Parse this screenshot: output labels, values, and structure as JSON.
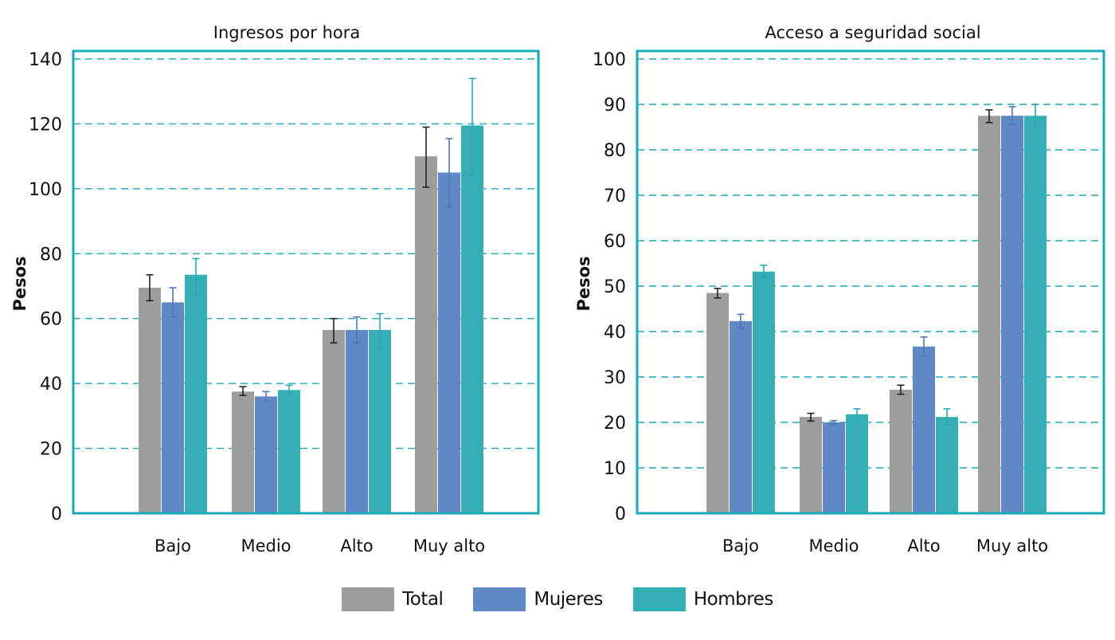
{
  "chart_data": [
    {
      "type": "bar",
      "title": "Ingresos por hora",
      "ylabel": "Pesos",
      "xlabel": "",
      "ylim": [
        0,
        140
      ],
      "yticks": [
        0,
        20,
        40,
        60,
        80,
        100,
        120,
        140
      ],
      "categories": [
        "Bajo",
        "Medio",
        "Alto",
        "Muy alto"
      ],
      "grid": "horizontal-dashed",
      "error_bars": true,
      "series": [
        {
          "name": "Total",
          "values": [
            69.5,
            37.5,
            56.5,
            110
          ],
          "err_low": [
            65.5,
            36.3,
            52.5,
            100.5
          ],
          "err_high": [
            73.5,
            39,
            60,
            119
          ]
        },
        {
          "name": "Mujeres",
          "values": [
            65,
            36,
            56.5,
            105
          ],
          "err_low": [
            60.5,
            34.5,
            52.5,
            94.5
          ],
          "err_high": [
            69.5,
            37.5,
            60.5,
            115.5
          ]
        },
        {
          "name": "Hombres",
          "values": [
            73.5,
            38,
            56.5,
            119.5
          ],
          "err_low": [
            67.5,
            36.5,
            50.5,
            104
          ],
          "err_high": [
            78.5,
            39.5,
            61.5,
            134
          ]
        }
      ]
    },
    {
      "type": "bar",
      "title": "Acceso a seguridad social",
      "ylabel": "Pesos",
      "xlabel": "",
      "ylim": [
        0,
        100
      ],
      "yticks": [
        0,
        10,
        20,
        30,
        40,
        50,
        60,
        70,
        80,
        90,
        100
      ],
      "categories": [
        "Bajo",
        "Medio",
        "Alto",
        "Muy alto"
      ],
      "grid": "horizontal-dashed",
      "error_bars": true,
      "series": [
        {
          "name": "Total",
          "values": [
            48.5,
            21.2,
            27.2,
            87.5
          ],
          "err_low": [
            47.4,
            20.3,
            26.2,
            86
          ],
          "err_high": [
            49.5,
            22,
            28.2,
            88.8
          ]
        },
        {
          "name": "Mujeres",
          "values": [
            42.3,
            20,
            36.7,
            87.5
          ],
          "err_low": [
            40.8,
            19.6,
            34.5,
            85.6
          ],
          "err_high": [
            43.8,
            20.4,
            38.8,
            89.5
          ]
        },
        {
          "name": "Hombres",
          "values": [
            53.2,
            21.8,
            21.2,
            87.5
          ],
          "err_low": [
            51.9,
            20.6,
            19.5,
            84.8
          ],
          "err_high": [
            54.6,
            23,
            23,
            90
          ]
        }
      ]
    }
  ],
  "legend": [
    {
      "label": "Total",
      "color": "#9d9d9d"
    },
    {
      "label": "Mujeres",
      "color": "#5f88c4"
    },
    {
      "label": "Hombres",
      "color": "#36aeb5"
    }
  ],
  "colors": {
    "frame": "#1aa9b7",
    "grid": "#1aa9b7",
    "series": [
      "#9d9d9d",
      "#5f88c4",
      "#36aeb5"
    ],
    "error_bar": [
      "#222222",
      "#4f78b8",
      "#2aa8b4"
    ]
  }
}
